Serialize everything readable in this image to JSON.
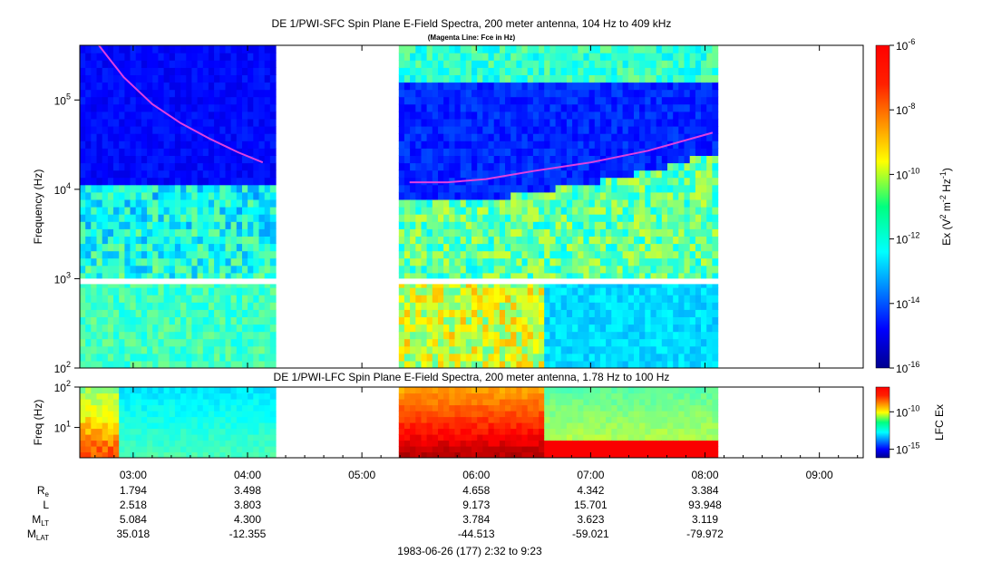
{
  "chart_data": [
    {
      "type": "heatmap",
      "title": "DE 1/PWI-SFC  Spin Plane E-Field Spectra, 200 meter antenna, 104 Hz to 409 kHz",
      "subtitle": "(Magenta Line: Fce in Hz)",
      "ylabel": "Frequency (Hz)",
      "y_scale": "log",
      "ylim": [
        100,
        409000
      ],
      "y_ticks": [
        {
          "value": 100,
          "base": "10",
          "exp": "2"
        },
        {
          "value": 1000,
          "base": "10",
          "exp": "3"
        },
        {
          "value": 10000,
          "base": "10",
          "exp": "4"
        },
        {
          "value": 100000,
          "base": "10",
          "exp": "5"
        }
      ],
      "x_range": [
        "02:32",
        "09:23"
      ],
      "data_gaps": [
        [
          "04:12",
          "05:18"
        ],
        [
          "08:04",
          "09:23"
        ]
      ],
      "colorbar": {
        "label_main": "Ex (V",
        "label_sup1": "2",
        "label_mid": " m",
        "label_sup2": "-2",
        "label_mid2": " Hz",
        "label_sup3": "-1",
        "label_end": ")",
        "scale": "log",
        "range": [
          1e-16,
          1e-06
        ],
        "ticks": [
          {
            "value": 1e-06,
            "base": "10",
            "exp": "-6"
          },
          {
            "value": 1e-08,
            "base": "10",
            "exp": "-8"
          },
          {
            "value": 1e-10,
            "base": "10",
            "exp": "-10"
          },
          {
            "value": 1e-12,
            "base": "10",
            "exp": "-12"
          },
          {
            "value": 1e-14,
            "base": "10",
            "exp": "-14"
          },
          {
            "value": 1e-16,
            "base": "10",
            "exp": "-16"
          }
        ]
      },
      "fce_line": [
        {
          "t": "02:42",
          "f": 409000
        },
        {
          "t": "02:55",
          "f": 180000
        },
        {
          "t": "03:10",
          "f": 90000
        },
        {
          "t": "03:25",
          "f": 55000
        },
        {
          "t": "03:40",
          "f": 37000
        },
        {
          "t": "03:55",
          "f": 26000
        },
        {
          "t": "04:08",
          "f": 20000
        },
        {
          "t": "05:25",
          "f": 12000
        },
        {
          "t": "05:45",
          "f": 12000
        },
        {
          "t": "06:05",
          "f": 13000
        },
        {
          "t": "06:30",
          "f": 16000
        },
        {
          "t": "07:00",
          "f": 20000
        },
        {
          "t": "07:30",
          "f": 27000
        },
        {
          "t": "08:04",
          "f": 43000
        }
      ]
    },
    {
      "type": "heatmap",
      "title": "DE 1/PWI-LFC  Spin Plane E-Field Spectra, 200 meter antenna, 1.78 Hz to 100 Hz",
      "ylabel": "Freq (Hz)",
      "y_scale": "log",
      "ylim": [
        1.78,
        100
      ],
      "y_ticks": [
        {
          "value": 10,
          "base": "10",
          "exp": "1"
        },
        {
          "value": 100,
          "base": "10",
          "exp": "2"
        }
      ],
      "x_range": [
        "02:32",
        "09:23"
      ],
      "colorbar": {
        "label": "LFC Ex",
        "scale": "log",
        "ticks": [
          {
            "value": 1e-10,
            "base": "10",
            "exp": "-10"
          },
          {
            "value": 1e-15,
            "base": "10",
            "exp": "-15"
          }
        ]
      }
    }
  ],
  "x_axis": {
    "ticks": [
      "03:00",
      "04:00",
      "05:00",
      "06:00",
      "07:00",
      "08:00",
      "09:00"
    ],
    "ephemeris": [
      {
        "label": "R",
        "sub": "e",
        "values": [
          "1.794",
          "3.498",
          "",
          "4.658",
          "4.342",
          "3.384",
          ""
        ]
      },
      {
        "label": "L",
        "sub": "",
        "values": [
          "2.518",
          "3.803",
          "",
          "9.173",
          "15.701",
          "93.948",
          ""
        ]
      },
      {
        "label": "M",
        "sub": "LT",
        "values": [
          "5.084",
          "4.300",
          "",
          "3.784",
          "3.623",
          "3.119",
          ""
        ]
      },
      {
        "label": "M",
        "sub": "LAT",
        "values": [
          "35.018",
          "-12.355",
          "",
          "-44.513",
          "-59.021",
          "-79.972",
          ""
        ]
      }
    ],
    "footer": "1983-06-26 (177) 2:32 to 9:23"
  },
  "colors": {
    "fce_line": "#e040e0",
    "background": "#ffffff"
  }
}
